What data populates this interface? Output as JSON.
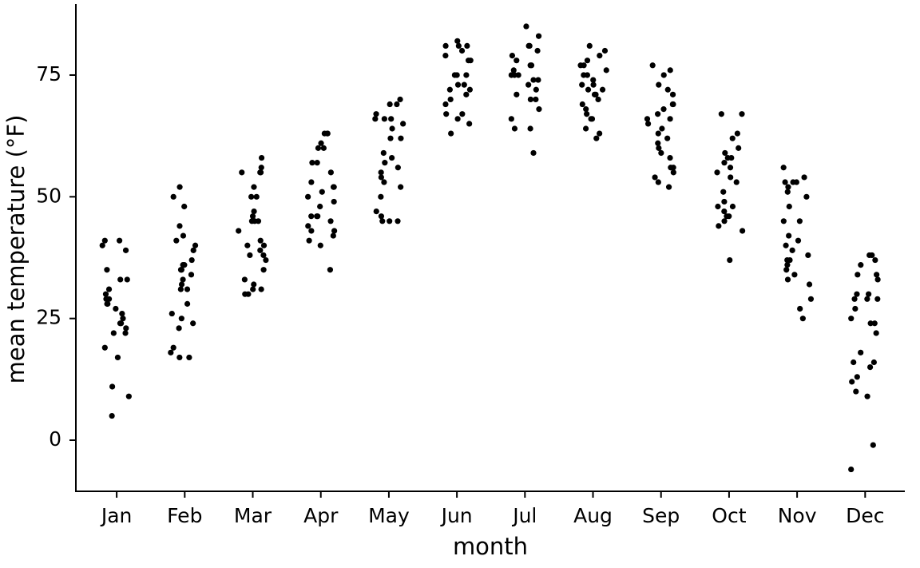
{
  "chart_data": {
    "type": "strip",
    "xlabel": "month",
    "ylabel": "mean temperature (°F)",
    "categories": [
      "Jan",
      "Feb",
      "Mar",
      "Apr",
      "May",
      "Jun",
      "Jul",
      "Aug",
      "Sep",
      "Oct",
      "Nov",
      "Dec"
    ],
    "values": [
      [
        40,
        39,
        41,
        41,
        35,
        33,
        33,
        31,
        30,
        29,
        29,
        28,
        28,
        27,
        26,
        25,
        24,
        24,
        23,
        22,
        22,
        19,
        17,
        11,
        9,
        5
      ],
      [
        52,
        50,
        48,
        44,
        42,
        41,
        40,
        39,
        37,
        36,
        36,
        35,
        35,
        34,
        33,
        32,
        31,
        31,
        28,
        26,
        25,
        24,
        23,
        19,
        18,
        17,
        17
      ],
      [
        58,
        56,
        55,
        55,
        55,
        52,
        50,
        50,
        47,
        46,
        45,
        45,
        45,
        43,
        41,
        40,
        40,
        39,
        38,
        38,
        37,
        35,
        33,
        32,
        31,
        31,
        30,
        30
      ],
      [
        63,
        63,
        63,
        61,
        60,
        60,
        57,
        57,
        55,
        53,
        52,
        52,
        51,
        50,
        49,
        48,
        46,
        46,
        46,
        45,
        44,
        43,
        43,
        42,
        41,
        40,
        35
      ],
      [
        70,
        69,
        69,
        67,
        66,
        66,
        66,
        65,
        64,
        62,
        62,
        59,
        58,
        57,
        56,
        55,
        54,
        53,
        52,
        50,
        47,
        46,
        45,
        45,
        45
      ],
      [
        82,
        81,
        81,
        81,
        80,
        79,
        78,
        78,
        75,
        75,
        75,
        73,
        73,
        72,
        72,
        71,
        70,
        69,
        67,
        67,
        66,
        65,
        63
      ],
      [
        85,
        83,
        81,
        81,
        80,
        79,
        78,
        77,
        77,
        76,
        75,
        75,
        75,
        74,
        74,
        73,
        72,
        71,
        70,
        70,
        68,
        66,
        64,
        64,
        59
      ],
      [
        81,
        80,
        79,
        78,
        77,
        77,
        76,
        75,
        75,
        74,
        73,
        73,
        72,
        72,
        71,
        71,
        70,
        69,
        68,
        67,
        66,
        66,
        64,
        63,
        62
      ],
      [
        77,
        76,
        75,
        73,
        72,
        71,
        69,
        69,
        68,
        67,
        66,
        66,
        65,
        64,
        63,
        62,
        61,
        60,
        59,
        58,
        56,
        56,
        55,
        54,
        53,
        52
      ],
      [
        67,
        67,
        63,
        62,
        60,
        59,
        58,
        58,
        57,
        56,
        55,
        54,
        53,
        51,
        49,
        48,
        48,
        47,
        46,
        46,
        45,
        44,
        43,
        37
      ],
      [
        56,
        54,
        53,
        53,
        53,
        52,
        51,
        50,
        48,
        45,
        45,
        42,
        41,
        40,
        39,
        38,
        37,
        37,
        36,
        35,
        34,
        33,
        32,
        29,
        27,
        25
      ],
      [
        38,
        38,
        37,
        36,
        34,
        34,
        33,
        30,
        30,
        29,
        29,
        29,
        27,
        25,
        24,
        24,
        22,
        18,
        16,
        16,
        15,
        13,
        12,
        10,
        9,
        -1,
        -6
      ]
    ],
    "color": "#000000",
    "ylim": [
      -10.5,
      89.6
    ],
    "yticks": [
      0,
      25,
      50,
      75
    ],
    "grid": false
  }
}
